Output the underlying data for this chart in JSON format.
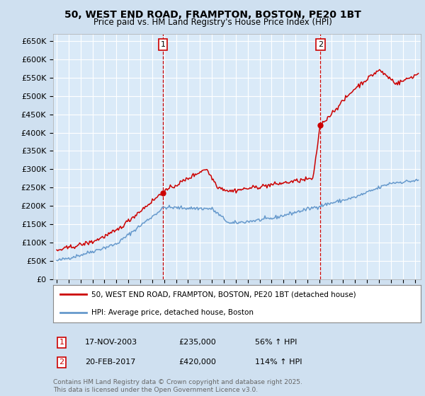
{
  "title_line1": "50, WEST END ROAD, FRAMPTON, BOSTON, PE20 1BT",
  "title_line2": "Price paid vs. HM Land Registry's House Price Index (HPI)",
  "background_color": "#cfe0f0",
  "plot_bg_color": "#daeaf8",
  "grid_color": "#ffffff",
  "ylim": [
    0,
    670000
  ],
  "yticks": [
    0,
    50000,
    100000,
    150000,
    200000,
    250000,
    300000,
    350000,
    400000,
    450000,
    500000,
    550000,
    600000,
    650000
  ],
  "ytick_labels": [
    "£0",
    "£50K",
    "£100K",
    "£150K",
    "£200K",
    "£250K",
    "£300K",
    "£350K",
    "£400K",
    "£450K",
    "£500K",
    "£550K",
    "£600K",
    "£650K"
  ],
  "xlim_start": 1994.7,
  "xlim_end": 2025.5,
  "sale1_x": 2003.9,
  "sale1_y": 235000,
  "sale1_label": "1",
  "sale2_x": 2017.1,
  "sale2_y": 420000,
  "sale2_label": "2",
  "red_color": "#cc0000",
  "blue_color": "#6699cc",
  "legend_label_red": "50, WEST END ROAD, FRAMPTON, BOSTON, PE20 1BT (detached house)",
  "legend_label_blue": "HPI: Average price, detached house, Boston",
  "annotation1_date": "17-NOV-2003",
  "annotation1_price": "£235,000",
  "annotation1_hpi": "56% ↑ HPI",
  "annotation2_date": "20-FEB-2017",
  "annotation2_price": "£420,000",
  "annotation2_hpi": "114% ↑ HPI",
  "footer": "Contains HM Land Registry data © Crown copyright and database right 2025.\nThis data is licensed under the Open Government Licence v3.0."
}
